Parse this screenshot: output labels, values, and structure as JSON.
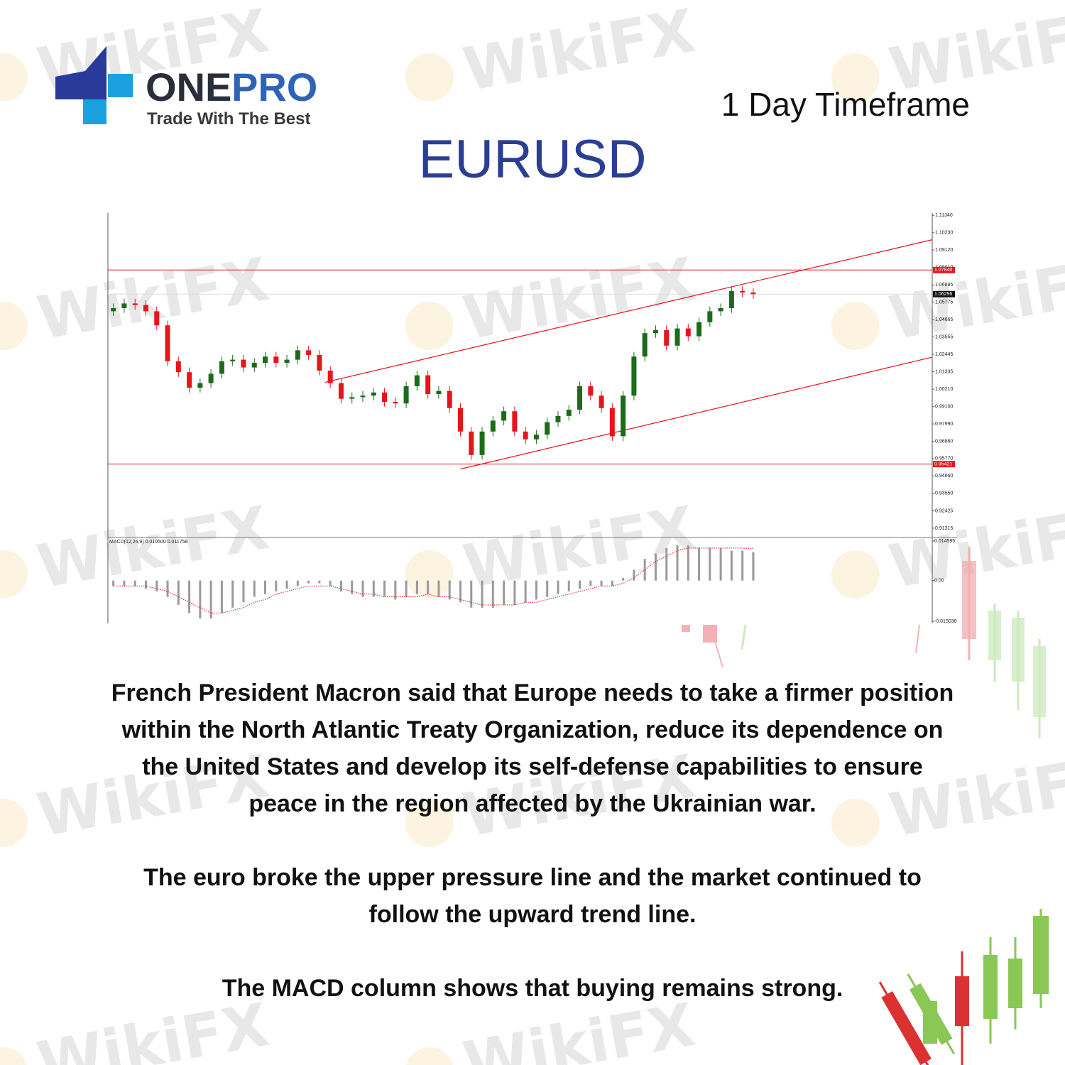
{
  "header": {
    "brand_one": "ONE",
    "brand_pro": "PRO",
    "tagline": "Trade With The Best",
    "timeframe": "1 Day Timeframe",
    "symbol": "EURUSD",
    "watermark": "WikiFX"
  },
  "chart_data": {
    "type": "candlestick",
    "up_color": "#1a6b1a",
    "down_color": "#e8141c",
    "line_color": "#e8141c",
    "xlim": [
      0,
      76
    ],
    "ylim": [
      0.9072,
      1.1149
    ],
    "yticks": [
      {
        "value": 1.1134,
        "label": "1.11340"
      },
      {
        "value": 1.1023,
        "label": "1.10230"
      },
      {
        "value": 1.0912,
        "label": "1.09120"
      },
      {
        "value": 1.0801,
        "label": "1.08010"
      },
      1.06885,
      1.05775,
      1.04665,
      1.03555,
      1.02445,
      1.01335,
      {
        "value": 1.0021,
        "label": "1.00210"
      },
      {
        "value": 0.991,
        "label": "0.99100"
      },
      {
        "value": 0.9799,
        "label": "0.97990"
      },
      {
        "value": 0.9688,
        "label": "0.96880"
      },
      {
        "value": 0.9577,
        "label": "0.95770"
      },
      {
        "value": 0.9466,
        "label": "0.94660"
      },
      {
        "value": 0.9355,
        "label": "0.93550"
      },
      {
        "value": 0.92425,
        "label": "0.92425"
      },
      {
        "value": 0.91315,
        "label": "0.91315"
      }
    ],
    "levels": [
      {
        "value": 1.0784,
        "label": "1.07840"
      },
      {
        "value": 0.95421,
        "label": "0.95421"
      }
    ],
    "current_price": {
      "value": 1.06296,
      "label": "1.06296"
    },
    "trendlines": [
      {
        "x": [
          20,
          76
        ],
        "y": [
          1.0065,
          1.0978
        ]
      },
      {
        "x": [
          32.5,
          76
        ],
        "y": [
          0.951,
          1.0226
        ]
      }
    ],
    "open": [
      1.052,
      1.054,
      1.057,
      1.056,
      1.052,
      1.043,
      1.02,
      1.013,
      1.003,
      1.006,
      1.012,
      1.02,
      1.021,
      1.016,
      1.019,
      1.023,
      1.019,
      1.021,
      1.027,
      1.024,
      1.014,
      1.006,
      0.996,
      0.997,
      0.998,
      1.0,
      0.994,
      0.993,
      1.004,
      1.011,
      0.999,
      1.001,
      0.99,
      0.975,
      0.96,
      0.975,
      0.982,
      0.988,
      0.975,
      0.97,
      0.973,
      0.981,
      0.985,
      0.989,
      1.004,
      0.998,
      0.99,
      0.972,
      0.998,
      1.023,
      1.038,
      1.04,
      1.03,
      1.041,
      1.036,
      1.045,
      1.052,
      1.054,
      1.065,
      1.064
    ],
    "high": [
      1.057,
      1.06,
      1.06,
      1.059,
      1.055,
      1.046,
      1.023,
      1.016,
      1.009,
      1.015,
      1.023,
      1.024,
      1.024,
      1.022,
      1.026,
      1.026,
      1.024,
      1.03,
      1.03,
      1.027,
      1.017,
      1.009,
      1.0,
      1.001,
      1.003,
      1.003,
      0.997,
      1.007,
      1.014,
      1.014,
      1.004,
      1.004,
      0.993,
      0.978,
      0.978,
      0.985,
      0.991,
      0.991,
      0.978,
      0.976,
      0.984,
      0.988,
      0.992,
      1.007,
      1.007,
      1.001,
      0.993,
      1.001,
      1.026,
      1.041,
      1.043,
      1.043,
      1.044,
      1.044,
      1.048,
      1.055,
      1.057,
      1.068,
      1.068,
      1.067
    ],
    "low": [
      1.049,
      1.051,
      1.053,
      1.049,
      1.04,
      1.017,
      1.01,
      1.0,
      1.0,
      1.003,
      1.009,
      1.017,
      1.013,
      1.013,
      1.016,
      1.016,
      1.016,
      1.018,
      1.021,
      1.011,
      1.003,
      0.993,
      0.993,
      0.994,
      0.995,
      0.991,
      0.99,
      0.99,
      1.001,
      0.996,
      0.996,
      0.987,
      0.972,
      0.957,
      0.957,
      0.972,
      0.979,
      0.972,
      0.967,
      0.967,
      0.97,
      0.978,
      0.982,
      0.986,
      0.995,
      0.987,
      0.969,
      0.969,
      0.995,
      1.02,
      1.035,
      1.027,
      1.027,
      1.033,
      1.033,
      1.042,
      1.049,
      1.051,
      1.061,
      1.06
    ],
    "close": [
      1.054,
      1.057,
      1.056,
      1.052,
      1.043,
      1.02,
      1.013,
      1.003,
      1.006,
      1.012,
      1.02,
      1.021,
      1.016,
      1.019,
      1.023,
      1.019,
      1.021,
      1.027,
      1.024,
      1.014,
      1.006,
      0.996,
      0.997,
      0.998,
      1.0,
      0.994,
      0.993,
      1.004,
      1.011,
      0.999,
      1.001,
      0.99,
      0.975,
      0.96,
      0.975,
      0.982,
      0.988,
      0.975,
      0.97,
      0.973,
      0.981,
      0.985,
      0.989,
      1.004,
      0.998,
      0.99,
      0.972,
      0.998,
      1.023,
      1.038,
      1.04,
      1.03,
      1.041,
      1.036,
      1.045,
      1.052,
      1.054,
      1.065,
      1.064,
      1.06296
    ],
    "macd": {
      "label": "MACD(12,26,9) 0.010500 0.011758",
      "ylim": [
        -0.0158,
        0.0159
      ],
      "yticks": [
        0.014595,
        {
          "value": 0,
          "label": "0.00"
        },
        -0.015038
      ],
      "bar_color": "#9a9a9a",
      "signal_color": "#e8141c",
      "values": [
        -0.002,
        -0.002,
        -0.002,
        -0.003,
        -0.004,
        -0.006,
        -0.009,
        -0.012,
        -0.014,
        -0.014,
        -0.012,
        -0.01,
        -0.008,
        -0.006,
        -0.005,
        -0.004,
        -0.003,
        -0.002,
        -0.001,
        -0.001,
        -0.002,
        -0.004,
        -0.005,
        -0.006,
        -0.006,
        -0.006,
        -0.007,
        -0.006,
        -0.005,
        -0.005,
        -0.006,
        -0.007,
        -0.008,
        -0.01,
        -0.01,
        -0.01,
        -0.009,
        -0.009,
        -0.008,
        -0.007,
        -0.006,
        -0.005,
        -0.004,
        -0.003,
        -0.002,
        -0.002,
        -0.002,
        0.001,
        0.004,
        0.008,
        0.01,
        0.012,
        0.013,
        0.013,
        0.012,
        0.012,
        0.012,
        0.011,
        0.011,
        0.0105
      ],
      "signal": [
        -0.002,
        -0.002,
        -0.002,
        -0.002,
        -0.003,
        -0.004,
        -0.006,
        -0.008,
        -0.01,
        -0.012,
        -0.012,
        -0.011,
        -0.01,
        -0.008,
        -0.007,
        -0.005,
        -0.004,
        -0.003,
        -0.002,
        -0.002,
        -0.002,
        -0.003,
        -0.004,
        -0.005,
        -0.005,
        -0.006,
        -0.006,
        -0.006,
        -0.006,
        -0.005,
        -0.006,
        -0.006,
        -0.007,
        -0.008,
        -0.009,
        -0.009,
        -0.009,
        -0.009,
        -0.008,
        -0.008,
        -0.007,
        -0.006,
        -0.005,
        -0.004,
        -0.003,
        -0.002,
        -0.002,
        -0.001,
        0.001,
        0.004,
        0.007,
        0.009,
        0.011,
        0.012,
        0.012,
        0.012,
        0.012,
        0.012,
        0.012,
        0.0118
      ]
    }
  },
  "body": {
    "paragraphs": [
      "French President Macron said that Europe needs to take a firmer position within the North Atlantic Treaty Organization, reduce its dependence on the United States and develop its self-defense capabilities to ensure peace in the region affected by the Ukrainian war.",
      "The euro broke the upper pressure line and the market continued to follow the upward trend line.",
      "The MACD column shows that buying remains strong."
    ]
  }
}
